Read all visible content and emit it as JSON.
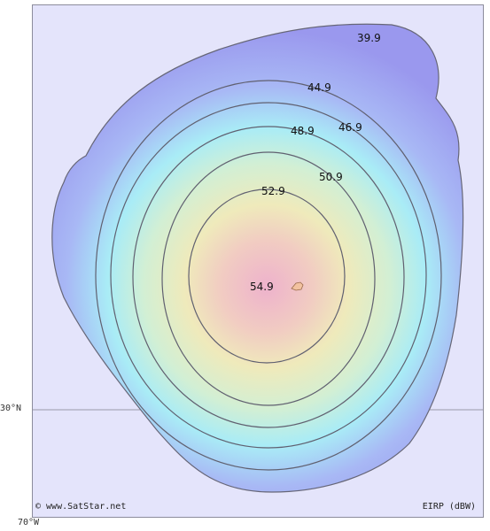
{
  "map": {
    "background_color": "#e4e4fb",
    "gridline_label": "30°N",
    "longitude_label": "70°W",
    "copyright": "© www.SatStar.net",
    "unit_label": "EIRP (dBW)"
  },
  "contours": [
    {
      "value": "39.9",
      "color": "#9a9cf1"
    },
    {
      "value": "44.9",
      "color": "#a6c9f7"
    },
    {
      "value": "46.9",
      "color": "#aeeaf4"
    },
    {
      "value": "48.9",
      "color": "#cdeed6"
    },
    {
      "value": "50.9",
      "color": "#ecefbb"
    },
    {
      "value": "52.9",
      "color": "#f0d8c0"
    },
    {
      "value": "54.9",
      "color": "#eeb9c6"
    }
  ],
  "beam_peak_label": "54.9",
  "island_color": "#f2c2a0"
}
